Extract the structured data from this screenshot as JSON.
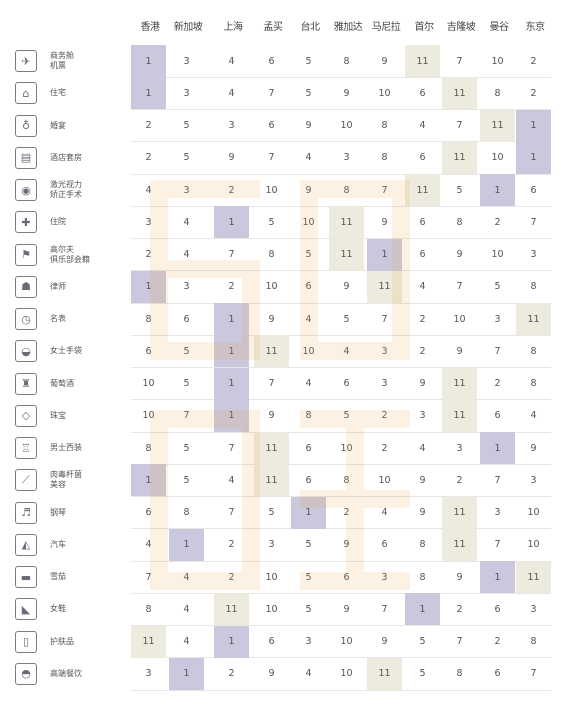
{
  "chart_data": {
    "type": "table",
    "columns": [
      "香港",
      "新加坡",
      "上海",
      "孟买",
      "台北",
      "雅加达",
      "马尼拉",
      "首尔",
      "吉隆坡",
      "曼谷",
      "东京"
    ],
    "rows": [
      {
        "label": "商务舱\n机票",
        "icon": "airplane-ticket-icon",
        "values": [
          1,
          3,
          4,
          6,
          5,
          8,
          9,
          11,
          7,
          10,
          2
        ],
        "highlight": {
          "0": "purple",
          "7": "beige"
        }
      },
      {
        "label": "住宅",
        "icon": "house-icon",
        "values": [
          1,
          3,
          4,
          7,
          5,
          9,
          10,
          6,
          11,
          8,
          2
        ],
        "highlight": {
          "0": "purple",
          "8": "beige"
        }
      },
      {
        "label": "婚宴",
        "icon": "wine-glasses-icon",
        "values": [
          2,
          5,
          3,
          6,
          9,
          10,
          8,
          4,
          7,
          11,
          1
        ],
        "highlight": {
          "9": "beige",
          "10": "purple"
        }
      },
      {
        "label": "酒店套房",
        "icon": "hotel-icon",
        "values": [
          2,
          5,
          9,
          7,
          4,
          3,
          8,
          6,
          11,
          10,
          1
        ],
        "highlight": {
          "8": "beige",
          "10": "purple"
        }
      },
      {
        "label": "激光视力\n矫正手术",
        "icon": "eye-laser-icon",
        "values": [
          4,
          3,
          2,
          10,
          9,
          8,
          7,
          11,
          5,
          1,
          6
        ],
        "highlight": {
          "7": "beige",
          "9": "purple"
        }
      },
      {
        "label": "住院",
        "icon": "hospital-icon",
        "values": [
          3,
          4,
          1,
          5,
          10,
          11,
          9,
          6,
          8,
          2,
          7
        ],
        "highlight": {
          "2": "purple",
          "5": "beige"
        }
      },
      {
        "label": "高尔夫\n俱乐部会籍",
        "icon": "golf-flag-icon",
        "values": [
          2,
          4,
          7,
          8,
          5,
          11,
          1,
          6,
          9,
          10,
          3
        ],
        "highlight": {
          "5": "beige",
          "6": "purple"
        }
      },
      {
        "label": "律师",
        "icon": "lawyer-icon",
        "values": [
          1,
          3,
          2,
          10,
          6,
          9,
          11,
          4,
          7,
          5,
          8
        ],
        "highlight": {
          "0": "purple",
          "6": "beige"
        }
      },
      {
        "label": "名表",
        "icon": "watch-icon",
        "values": [
          8,
          6,
          1,
          9,
          4,
          5,
          7,
          2,
          10,
          3,
          11
        ],
        "highlight": {
          "2": "purple",
          "10": "beige"
        }
      },
      {
        "label": "女士手袋",
        "icon": "handbag-icon",
        "values": [
          6,
          5,
          1,
          11,
          10,
          4,
          3,
          2,
          9,
          7,
          8
        ],
        "highlight": {
          "2": "purple",
          "3": "beige"
        }
      },
      {
        "label": "葡萄酒",
        "icon": "wine-bottle-icon",
        "values": [
          10,
          5,
          1,
          7,
          4,
          6,
          3,
          9,
          11,
          2,
          8
        ],
        "highlight": {
          "2": "purple",
          "8": "beige"
        }
      },
      {
        "label": "珠宝",
        "icon": "diamond-icon",
        "values": [
          10,
          7,
          1,
          9,
          8,
          5,
          2,
          3,
          11,
          6,
          4
        ],
        "highlight": {
          "2": "purple",
          "8": "beige"
        }
      },
      {
        "label": "男士西装",
        "icon": "suit-icon",
        "values": [
          8,
          5,
          7,
          11,
          6,
          10,
          2,
          4,
          3,
          1,
          9
        ],
        "highlight": {
          "3": "beige",
          "9": "purple"
        }
      },
      {
        "label": "肉毒杆菌\n美容",
        "icon": "syringe-icon",
        "values": [
          1,
          5,
          4,
          11,
          6,
          8,
          10,
          9,
          2,
          7,
          3
        ],
        "highlight": {
          "0": "purple",
          "3": "beige"
        }
      },
      {
        "label": "钢琴",
        "icon": "piano-icon",
        "values": [
          6,
          8,
          7,
          5,
          1,
          2,
          4,
          9,
          11,
          3,
          10
        ],
        "highlight": {
          "4": "purple",
          "8": "beige"
        }
      },
      {
        "label": "汽车",
        "icon": "car-icon",
        "values": [
          4,
          1,
          2,
          3,
          5,
          9,
          6,
          8,
          11,
          7,
          10
        ],
        "highlight": {
          "1": "purple",
          "8": "beige"
        }
      },
      {
        "label": "雪茄",
        "icon": "cigar-icon",
        "values": [
          7,
          4,
          2,
          10,
          5,
          6,
          3,
          8,
          9,
          1,
          11
        ],
        "highlight": {
          "9": "purple",
          "10": "beige"
        }
      },
      {
        "label": "女鞋",
        "icon": "high-heel-icon",
        "values": [
          8,
          4,
          11,
          10,
          5,
          9,
          7,
          1,
          2,
          6,
          3
        ],
        "highlight": {
          "2": "beige",
          "7": "purple"
        }
      },
      {
        "label": "护肤品",
        "icon": "skincare-icon",
        "values": [
          11,
          4,
          1,
          6,
          3,
          10,
          9,
          5,
          7,
          2,
          8
        ],
        "highlight": {
          "0": "beige",
          "2": "purple"
        }
      },
      {
        "label": "高端餐饮",
        "icon": "dining-icon",
        "values": [
          3,
          1,
          2,
          9,
          4,
          10,
          11,
          5,
          8,
          6,
          7
        ],
        "highlight": {
          "1": "purple",
          "6": "beige"
        }
      }
    ],
    "colors": {
      "purple": "#c9c8dd",
      "beige": "#ecebdd"
    }
  }
}
